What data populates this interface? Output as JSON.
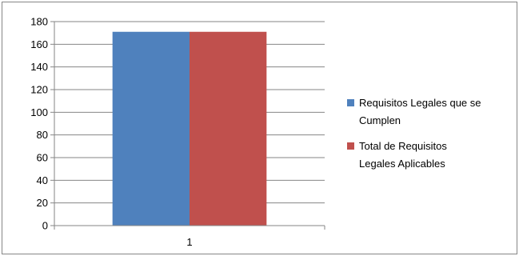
{
  "chart_data": {
    "type": "bar",
    "categories": [
      "1"
    ],
    "series": [
      {
        "name": "Requisitos Legales que se Cumplen",
        "values": [
          171
        ],
        "color": "#4F81BD"
      },
      {
        "name": "Total de Requisitos Legales Aplicables",
        "values": [
          171
        ],
        "color": "#C0504D"
      }
    ],
    "yticks": [
      "0",
      "20",
      "40",
      "60",
      "80",
      "100",
      "120",
      "140",
      "160",
      "180"
    ],
    "ylim": [
      0,
      180
    ],
    "grid": true,
    "legend_position": "right",
    "legend": {
      "entries": [
        {
          "lines": [
            "Requisitos Legales que se",
            "Cumplen"
          ]
        },
        {
          "lines": [
            "Total de Requisitos",
            "Legales Aplicables"
          ]
        }
      ]
    }
  }
}
